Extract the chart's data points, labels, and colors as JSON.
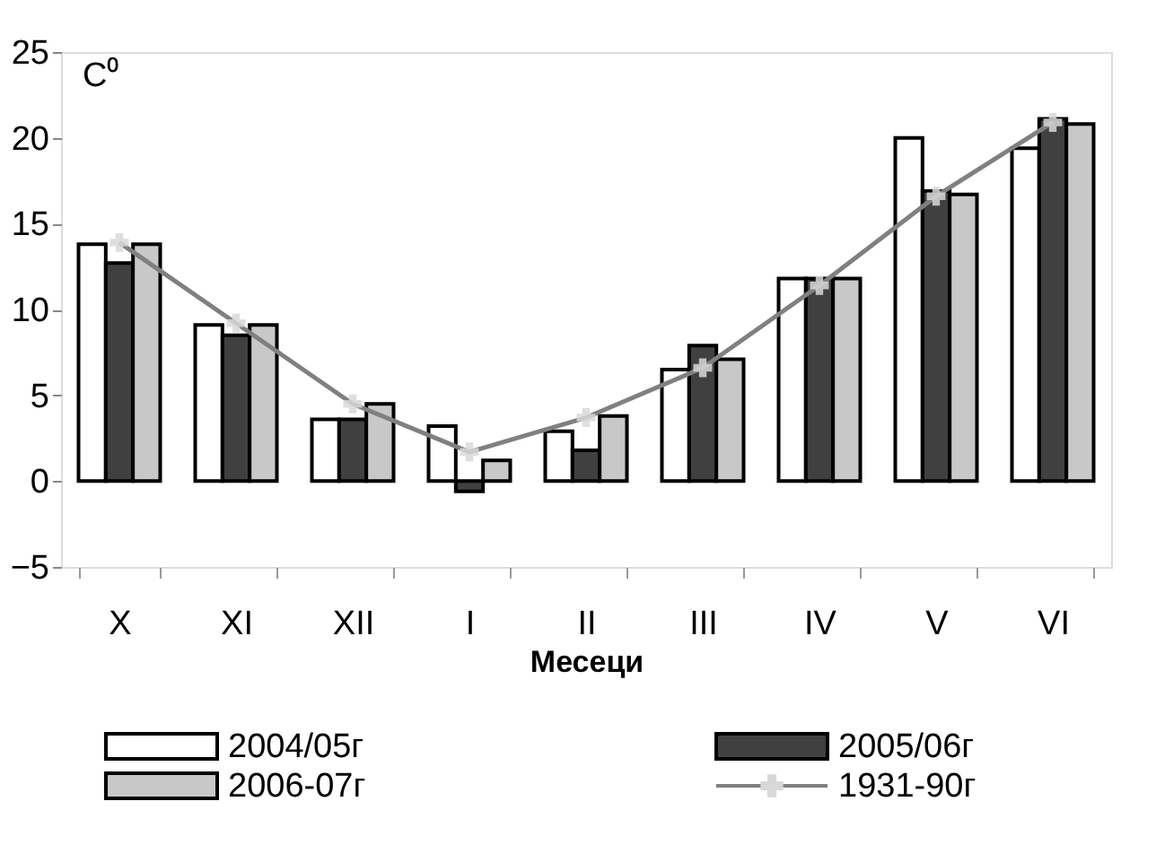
{
  "chart_data": {
    "type": "bar",
    "xlabel": "Месеци",
    "ylabel": "C⁰",
    "categories": [
      "X",
      "XI",
      "XII",
      "I",
      "II",
      "III",
      "IV",
      "V",
      "VI"
    ],
    "series": [
      {
        "name": "2004/05г",
        "color": "#ffffff",
        "values": [
          13.8,
          9.1,
          3.6,
          3.2,
          2.9,
          6.5,
          11.8,
          20.0,
          19.4
        ]
      },
      {
        "name": "2005/06г",
        "color": "#404040",
        "values": [
          12.7,
          8.5,
          3.6,
          -0.6,
          1.8,
          7.9,
          11.8,
          16.9,
          21.1
        ]
      },
      {
        "name": "2006-07г",
        "color": "#c8c8c8",
        "values": [
          13.8,
          9.1,
          4.5,
          1.2,
          3.8,
          7.1,
          11.8,
          16.7,
          20.8
        ]
      },
      {
        "name": "1931-90г",
        "type": "line",
        "color": "#808080",
        "marker": "cross",
        "values": [
          13.9,
          9.2,
          4.5,
          1.7,
          3.7,
          6.6,
          11.4,
          16.6,
          20.9
        ]
      }
    ],
    "ylim": [
      -5,
      25
    ],
    "yticks": [
      -5,
      0,
      5,
      10,
      15,
      20,
      25
    ],
    "grid": false,
    "legend": "bottom"
  }
}
